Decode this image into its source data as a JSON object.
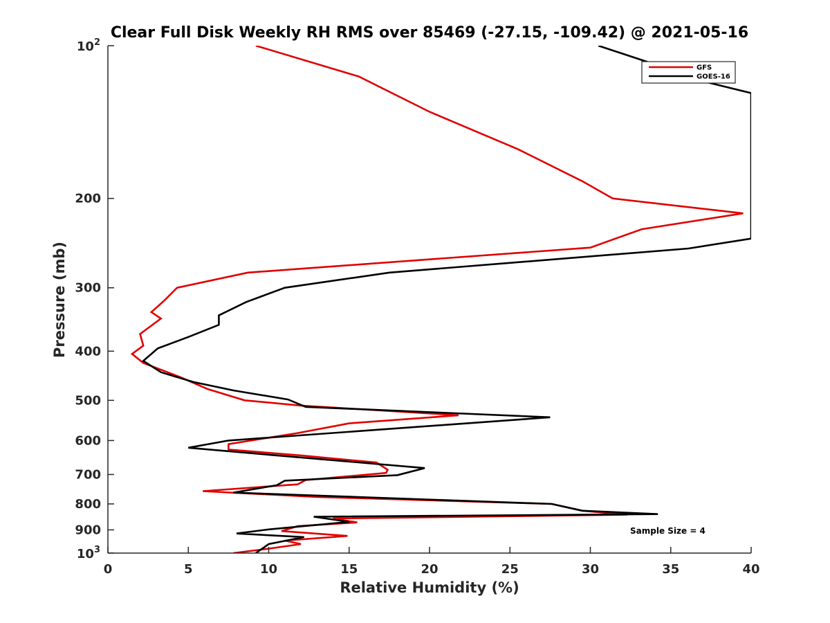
{
  "chart_data": {
    "type": "line",
    "title": "Clear Full Disk Weekly RH RMS over 85469 (-27.15, -109.42) @ 2021-05-16",
    "xlabel": "Relative Humidity (%)",
    "ylabel": "Pressure (mb)",
    "xlim": [
      0,
      40
    ],
    "ylim": [
      100,
      1000
    ],
    "y_scale": "log",
    "y_reversed": true,
    "x_ticks": [
      0,
      5,
      10,
      15,
      20,
      25,
      30,
      35,
      40
    ],
    "x_tick_labels": [
      "0",
      "5",
      "10",
      "15",
      "20",
      "25",
      "30",
      "35",
      "40"
    ],
    "y_ticks": [
      100,
      200,
      300,
      400,
      500,
      600,
      700,
      800,
      900,
      1000
    ],
    "y_tick_labels": [
      "10^2",
      "200",
      "300",
      "400",
      "500",
      "600",
      "700",
      "800",
      "900",
      "10^3"
    ],
    "grid": false,
    "legend_position": "top-right",
    "annotation": "Sample Size = 4",
    "series": [
      {
        "name": "GFS",
        "color": "#e00000",
        "points": [
          [
            9.2,
            100
          ],
          [
            15.6,
            115
          ],
          [
            20.0,
            135
          ],
          [
            25.5,
            160
          ],
          [
            29.5,
            185
          ],
          [
            31.4,
            200
          ],
          [
            39.5,
            214
          ],
          [
            33.2,
            230
          ],
          [
            30.0,
            250
          ],
          [
            8.7,
            280
          ],
          [
            4.3,
            300
          ],
          [
            3.5,
            318
          ],
          [
            2.7,
            335
          ],
          [
            3.3,
            345
          ],
          [
            2.0,
            370
          ],
          [
            2.2,
            390
          ],
          [
            1.5,
            405
          ],
          [
            2.2,
            422
          ],
          [
            4.5,
            450
          ],
          [
            6.2,
            475
          ],
          [
            8.5,
            500
          ],
          [
            12.0,
            512
          ],
          [
            21.8,
            535
          ],
          [
            15.0,
            555
          ],
          [
            11.8,
            580
          ],
          [
            7.5,
            610
          ],
          [
            7.5,
            625
          ],
          [
            12.0,
            642
          ],
          [
            16.7,
            663
          ],
          [
            17.4,
            685
          ],
          [
            17.3,
            695
          ],
          [
            12.3,
            718
          ],
          [
            11.8,
            732
          ],
          [
            5.9,
            755
          ],
          [
            13.0,
            775
          ],
          [
            27.6,
            800
          ],
          [
            29.5,
            825
          ],
          [
            32.3,
            840
          ],
          [
            14.0,
            855
          ],
          [
            15.5,
            870
          ],
          [
            11.8,
            885
          ],
          [
            10.8,
            905
          ],
          [
            14.9,
            925
          ],
          [
            11.0,
            945
          ],
          [
            12.0,
            960
          ],
          [
            10.0,
            980
          ],
          [
            7.8,
            1000
          ]
        ]
      },
      {
        "name": "GOES-16",
        "color": "#000000",
        "points": [
          [
            30.5,
            100
          ],
          [
            35.2,
            112
          ],
          [
            35.8,
            115
          ],
          [
            40.0,
            124
          ],
          [
            40.0,
            240
          ],
          [
            36.1,
            251
          ],
          [
            17.5,
            280
          ],
          [
            11.0,
            300
          ],
          [
            8.6,
            320
          ],
          [
            6.9,
            340
          ],
          [
            6.9,
            355
          ],
          [
            5.0,
            375
          ],
          [
            3.1,
            395
          ],
          [
            2.2,
            418
          ],
          [
            3.3,
            440
          ],
          [
            5.3,
            460
          ],
          [
            7.8,
            478
          ],
          [
            11.2,
            498
          ],
          [
            12.3,
            515
          ],
          [
            27.5,
            540
          ],
          [
            7.5,
            600
          ],
          [
            5.0,
            620
          ],
          [
            10.0,
            640
          ],
          [
            19.7,
            680
          ],
          [
            18.0,
            702
          ],
          [
            11.0,
            720
          ],
          [
            10.5,
            735
          ],
          [
            7.8,
            760
          ],
          [
            27.6,
            800
          ],
          [
            29.5,
            825
          ],
          [
            34.2,
            838
          ],
          [
            12.8,
            848
          ],
          [
            15.0,
            868
          ],
          [
            10.0,
            898
          ],
          [
            8.0,
            915
          ],
          [
            12.2,
            930
          ],
          [
            10.0,
            960
          ],
          [
            9.2,
            1000
          ]
        ]
      }
    ]
  }
}
